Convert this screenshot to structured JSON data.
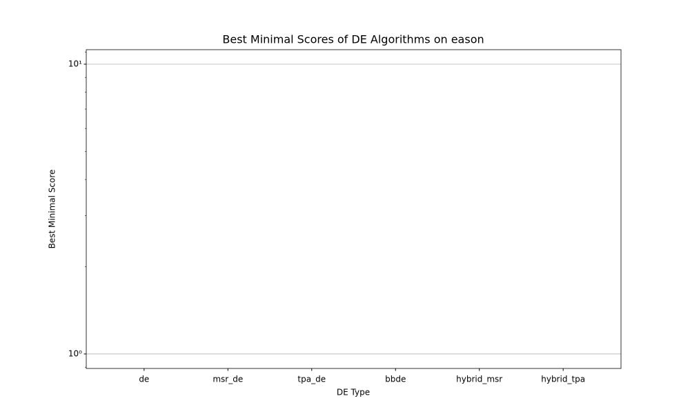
{
  "chart_data": {
    "type": "bar",
    "title": "Best Minimal Scores of DE Algorithms on eason",
    "x_label": "DE Type",
    "y_label": "Best Minimal Score",
    "categories": [
      "de",
      "msr_de",
      "tpa_de",
      "bbde",
      "hybrid_msr",
      "hybrid_tpa"
    ],
    "values": [
      null,
      null,
      null,
      null,
      null,
      null
    ],
    "color": "#1f77b4",
    "log_scale": true,
    "ylim": [
      0.891,
      11.22
    ],
    "yticks": [
      {
        "value": 1,
        "label": "10⁰"
      },
      {
        "value": 10,
        "label": "10¹"
      }
    ],
    "yticks_minor": [
      0.9,
      2,
      3,
      4,
      5,
      6,
      7,
      8,
      9,
      11
    ],
    "grid": true
  }
}
